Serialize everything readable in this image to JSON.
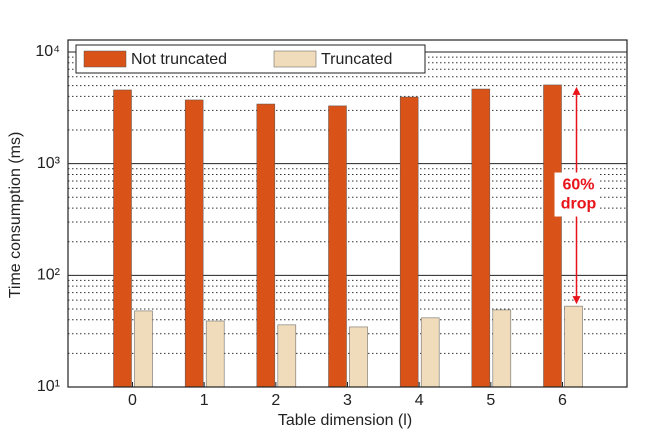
{
  "chart_data": {
    "type": "bar",
    "categories": [
      "0",
      "1",
      "2",
      "3",
      "4",
      "5",
      "6"
    ],
    "xlabel": "Table dimension (l)",
    "ylabel": "Time consumption (ms)",
    "log_y": true,
    "grid": true,
    "minor_grid": true,
    "legend": "top-left",
    "ylim": [
      10,
      12800
    ],
    "yticks": [
      {
        "value": 10,
        "label": "10¹"
      },
      {
        "value": 100,
        "label": "10²"
      },
      {
        "value": 1000,
        "label": "10³"
      },
      {
        "value": 10000,
        "label": "10⁴"
      }
    ],
    "series": [
      {
        "name": "Not truncated",
        "color": "#d95319",
        "values": [
          4570,
          3720,
          3420,
          3290,
          3950,
          4660,
          5070
        ]
      },
      {
        "name": "Truncated",
        "color": "#f0dcba",
        "values": [
          48,
          39,
          36,
          34.5,
          41.6,
          49,
          53
        ]
      }
    ],
    "annotation": {
      "lines": [
        "60%",
        "drop"
      ],
      "color": "#e8141a",
      "category": 6
    }
  }
}
